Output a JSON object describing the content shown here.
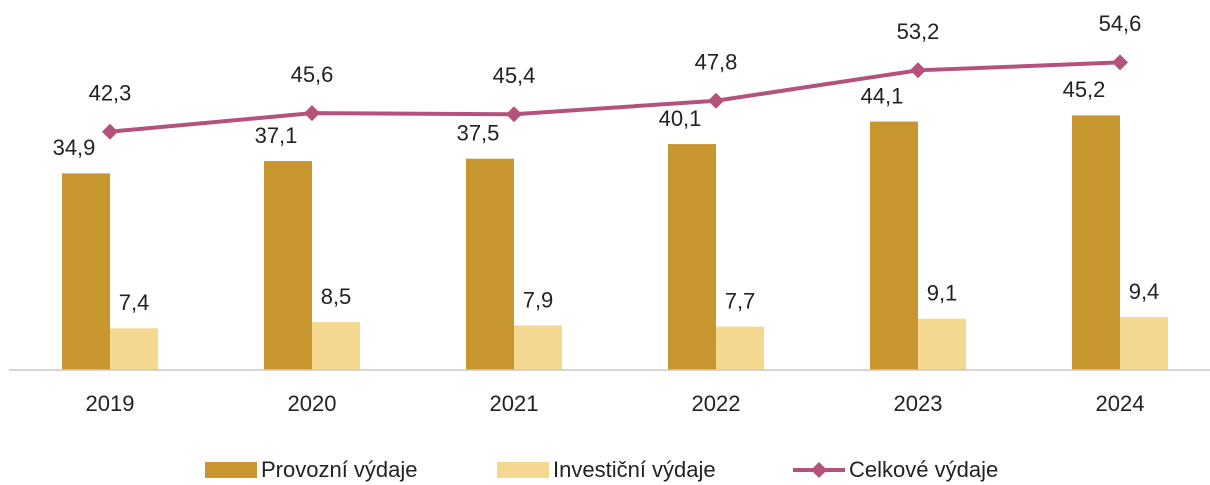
{
  "chart_data": {
    "type": "bar",
    "categories": [
      "2019",
      "2020",
      "2021",
      "2022",
      "2023",
      "2024"
    ],
    "series": [
      {
        "name": "Provozní výdaje",
        "type": "bar",
        "color": "#c8962e",
        "values": [
          34.9,
          37.1,
          37.5,
          40.1,
          44.1,
          45.2
        ],
        "value_labels": [
          "34,9",
          "37,1",
          "37,5",
          "40,1",
          "44,1",
          "45,2"
        ]
      },
      {
        "name": "Investiční výdaje",
        "type": "bar",
        "color": "#f5d890",
        "values": [
          7.4,
          8.5,
          7.9,
          7.7,
          9.1,
          9.4
        ],
        "value_labels": [
          "7,4",
          "8,5",
          "7,9",
          "7,7",
          "9,1",
          "9,4"
        ]
      },
      {
        "name": "Celkové výdaje",
        "type": "line",
        "color": "#b5527c",
        "values": [
          42.3,
          45.6,
          45.4,
          47.8,
          53.2,
          54.6
        ],
        "value_labels": [
          "42,3",
          "45,6",
          "45,4",
          "47,8",
          "53,2",
          "54,6"
        ]
      }
    ],
    "ylim": [
      0,
      60
    ],
    "legend": "bottom"
  }
}
